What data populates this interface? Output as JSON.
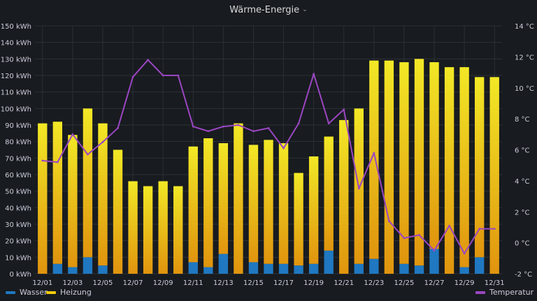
{
  "panel": {
    "title": "Wärme-Energie",
    "menu_icon": "chevron-down-icon"
  },
  "colors": {
    "background": "#181b1f",
    "grid": "#2c3035",
    "axis_text": "#ccccdc",
    "wasser": "#1f78c1",
    "heizung_top": "#f2e826",
    "heizung_bottom": "#e0940e",
    "temperatur": "#9a46c2"
  },
  "legend": {
    "wasser": "Wasser",
    "heizung": "Heizung",
    "temperatur": "Temperatur"
  },
  "chart_data": {
    "type": "bar",
    "stacked": true,
    "categories": [
      "12/01",
      "12/02",
      "12/03",
      "12/04",
      "12/05",
      "12/06",
      "12/07",
      "12/08",
      "12/09",
      "12/10",
      "12/11",
      "12/12",
      "12/13",
      "12/14",
      "12/15",
      "12/16",
      "12/17",
      "12/18",
      "12/19",
      "12/20",
      "12/21",
      "12/22",
      "12/23",
      "12/24",
      "12/25",
      "12/26",
      "12/27",
      "12/28",
      "12/29",
      "12/30",
      "12/31"
    ],
    "x_tick_labels": [
      "12/01",
      "12/03",
      "12/05",
      "12/07",
      "12/09",
      "12/11",
      "12/13",
      "12/15",
      "12/17",
      "12/19",
      "12/21",
      "12/23",
      "12/25",
      "12/27",
      "12/29",
      "12/31"
    ],
    "series": [
      {
        "name": "Wasser",
        "axis": "left",
        "unit": "kWh",
        "values": [
          0,
          6,
          4,
          10,
          5,
          0,
          0,
          0,
          0,
          0,
          7,
          4,
          12,
          0,
          7,
          6,
          6,
          5,
          6,
          14,
          0,
          6,
          9,
          0,
          6,
          5,
          15,
          0,
          4,
          10,
          0
        ]
      },
      {
        "name": "Heizung",
        "axis": "left",
        "unit": "kWh",
        "values": [
          91,
          86,
          80,
          90,
          86,
          75,
          56,
          53,
          56,
          53,
          70,
          78,
          67,
          91,
          71,
          75,
          73,
          56,
          65,
          69,
          93,
          94,
          120,
          129,
          122,
          125,
          113,
          125,
          121,
          109,
          119
        ]
      },
      {
        "name": "Temperatur",
        "axis": "right",
        "unit": "°C",
        "type": "line",
        "values": [
          5.3,
          5.2,
          7.0,
          5.7,
          6.5,
          7.4,
          10.7,
          11.8,
          10.8,
          10.8,
          7.5,
          7.2,
          7.5,
          7.6,
          7.2,
          7.4,
          6.1,
          7.7,
          10.9,
          7.7,
          8.6,
          3.5,
          5.8,
          1.4,
          0.3,
          0.5,
          -0.5,
          1.1,
          -0.7,
          0.9,
          0.9
        ]
      }
    ],
    "y_left": {
      "min": 0,
      "max": 150,
      "step": 10,
      "unit": "kWh"
    },
    "y_right": {
      "min": -2,
      "max": 14,
      "step": 2,
      "unit": "°C"
    },
    "grid": true,
    "legend_position": "bottom"
  }
}
